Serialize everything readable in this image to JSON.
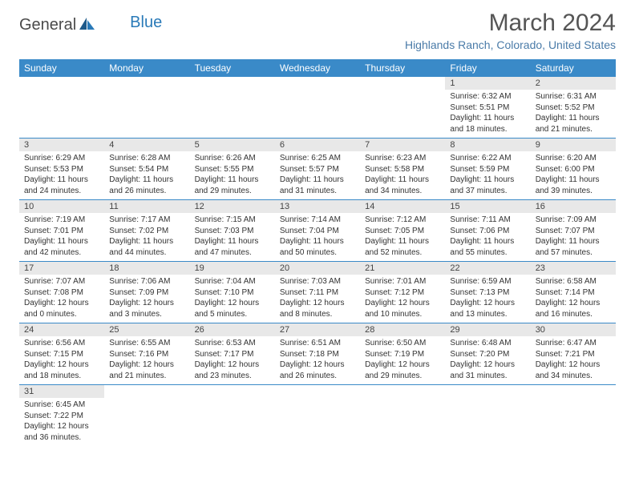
{
  "logo": {
    "part1": "General",
    "part2": "Blue"
  },
  "title": "March 2024",
  "location": "Highlands Ranch, Colorado, United States",
  "colors": {
    "header_bg": "#3a8ac8",
    "header_text": "#ffffff",
    "daynum_bg": "#e8e8e8",
    "border": "#3a8ac8",
    "logo_blue": "#2a7ab8",
    "location_color": "#4a7ba8"
  },
  "weekdays": [
    "Sunday",
    "Monday",
    "Tuesday",
    "Wednesday",
    "Thursday",
    "Friday",
    "Saturday"
  ],
  "weeks": [
    [
      null,
      null,
      null,
      null,
      null,
      {
        "n": "1",
        "sr": "Sunrise: 6:32 AM",
        "ss": "Sunset: 5:51 PM",
        "d1": "Daylight: 11 hours",
        "d2": "and 18 minutes."
      },
      {
        "n": "2",
        "sr": "Sunrise: 6:31 AM",
        "ss": "Sunset: 5:52 PM",
        "d1": "Daylight: 11 hours",
        "d2": "and 21 minutes."
      }
    ],
    [
      {
        "n": "3",
        "sr": "Sunrise: 6:29 AM",
        "ss": "Sunset: 5:53 PM",
        "d1": "Daylight: 11 hours",
        "d2": "and 24 minutes."
      },
      {
        "n": "4",
        "sr": "Sunrise: 6:28 AM",
        "ss": "Sunset: 5:54 PM",
        "d1": "Daylight: 11 hours",
        "d2": "and 26 minutes."
      },
      {
        "n": "5",
        "sr": "Sunrise: 6:26 AM",
        "ss": "Sunset: 5:55 PM",
        "d1": "Daylight: 11 hours",
        "d2": "and 29 minutes."
      },
      {
        "n": "6",
        "sr": "Sunrise: 6:25 AM",
        "ss": "Sunset: 5:57 PM",
        "d1": "Daylight: 11 hours",
        "d2": "and 31 minutes."
      },
      {
        "n": "7",
        "sr": "Sunrise: 6:23 AM",
        "ss": "Sunset: 5:58 PM",
        "d1": "Daylight: 11 hours",
        "d2": "and 34 minutes."
      },
      {
        "n": "8",
        "sr": "Sunrise: 6:22 AM",
        "ss": "Sunset: 5:59 PM",
        "d1": "Daylight: 11 hours",
        "d2": "and 37 minutes."
      },
      {
        "n": "9",
        "sr": "Sunrise: 6:20 AM",
        "ss": "Sunset: 6:00 PM",
        "d1": "Daylight: 11 hours",
        "d2": "and 39 minutes."
      }
    ],
    [
      {
        "n": "10",
        "sr": "Sunrise: 7:19 AM",
        "ss": "Sunset: 7:01 PM",
        "d1": "Daylight: 11 hours",
        "d2": "and 42 minutes."
      },
      {
        "n": "11",
        "sr": "Sunrise: 7:17 AM",
        "ss": "Sunset: 7:02 PM",
        "d1": "Daylight: 11 hours",
        "d2": "and 44 minutes."
      },
      {
        "n": "12",
        "sr": "Sunrise: 7:15 AM",
        "ss": "Sunset: 7:03 PM",
        "d1": "Daylight: 11 hours",
        "d2": "and 47 minutes."
      },
      {
        "n": "13",
        "sr": "Sunrise: 7:14 AM",
        "ss": "Sunset: 7:04 PM",
        "d1": "Daylight: 11 hours",
        "d2": "and 50 minutes."
      },
      {
        "n": "14",
        "sr": "Sunrise: 7:12 AM",
        "ss": "Sunset: 7:05 PM",
        "d1": "Daylight: 11 hours",
        "d2": "and 52 minutes."
      },
      {
        "n": "15",
        "sr": "Sunrise: 7:11 AM",
        "ss": "Sunset: 7:06 PM",
        "d1": "Daylight: 11 hours",
        "d2": "and 55 minutes."
      },
      {
        "n": "16",
        "sr": "Sunrise: 7:09 AM",
        "ss": "Sunset: 7:07 PM",
        "d1": "Daylight: 11 hours",
        "d2": "and 57 minutes."
      }
    ],
    [
      {
        "n": "17",
        "sr": "Sunrise: 7:07 AM",
        "ss": "Sunset: 7:08 PM",
        "d1": "Daylight: 12 hours",
        "d2": "and 0 minutes."
      },
      {
        "n": "18",
        "sr": "Sunrise: 7:06 AM",
        "ss": "Sunset: 7:09 PM",
        "d1": "Daylight: 12 hours",
        "d2": "and 3 minutes."
      },
      {
        "n": "19",
        "sr": "Sunrise: 7:04 AM",
        "ss": "Sunset: 7:10 PM",
        "d1": "Daylight: 12 hours",
        "d2": "and 5 minutes."
      },
      {
        "n": "20",
        "sr": "Sunrise: 7:03 AM",
        "ss": "Sunset: 7:11 PM",
        "d1": "Daylight: 12 hours",
        "d2": "and 8 minutes."
      },
      {
        "n": "21",
        "sr": "Sunrise: 7:01 AM",
        "ss": "Sunset: 7:12 PM",
        "d1": "Daylight: 12 hours",
        "d2": "and 10 minutes."
      },
      {
        "n": "22",
        "sr": "Sunrise: 6:59 AM",
        "ss": "Sunset: 7:13 PM",
        "d1": "Daylight: 12 hours",
        "d2": "and 13 minutes."
      },
      {
        "n": "23",
        "sr": "Sunrise: 6:58 AM",
        "ss": "Sunset: 7:14 PM",
        "d1": "Daylight: 12 hours",
        "d2": "and 16 minutes."
      }
    ],
    [
      {
        "n": "24",
        "sr": "Sunrise: 6:56 AM",
        "ss": "Sunset: 7:15 PM",
        "d1": "Daylight: 12 hours",
        "d2": "and 18 minutes."
      },
      {
        "n": "25",
        "sr": "Sunrise: 6:55 AM",
        "ss": "Sunset: 7:16 PM",
        "d1": "Daylight: 12 hours",
        "d2": "and 21 minutes."
      },
      {
        "n": "26",
        "sr": "Sunrise: 6:53 AM",
        "ss": "Sunset: 7:17 PM",
        "d1": "Daylight: 12 hours",
        "d2": "and 23 minutes."
      },
      {
        "n": "27",
        "sr": "Sunrise: 6:51 AM",
        "ss": "Sunset: 7:18 PM",
        "d1": "Daylight: 12 hours",
        "d2": "and 26 minutes."
      },
      {
        "n": "28",
        "sr": "Sunrise: 6:50 AM",
        "ss": "Sunset: 7:19 PM",
        "d1": "Daylight: 12 hours",
        "d2": "and 29 minutes."
      },
      {
        "n": "29",
        "sr": "Sunrise: 6:48 AM",
        "ss": "Sunset: 7:20 PM",
        "d1": "Daylight: 12 hours",
        "d2": "and 31 minutes."
      },
      {
        "n": "30",
        "sr": "Sunrise: 6:47 AM",
        "ss": "Sunset: 7:21 PM",
        "d1": "Daylight: 12 hours",
        "d2": "and 34 minutes."
      }
    ],
    [
      {
        "n": "31",
        "sr": "Sunrise: 6:45 AM",
        "ss": "Sunset: 7:22 PM",
        "d1": "Daylight: 12 hours",
        "d2": "and 36 minutes."
      },
      null,
      null,
      null,
      null,
      null,
      null
    ]
  ]
}
